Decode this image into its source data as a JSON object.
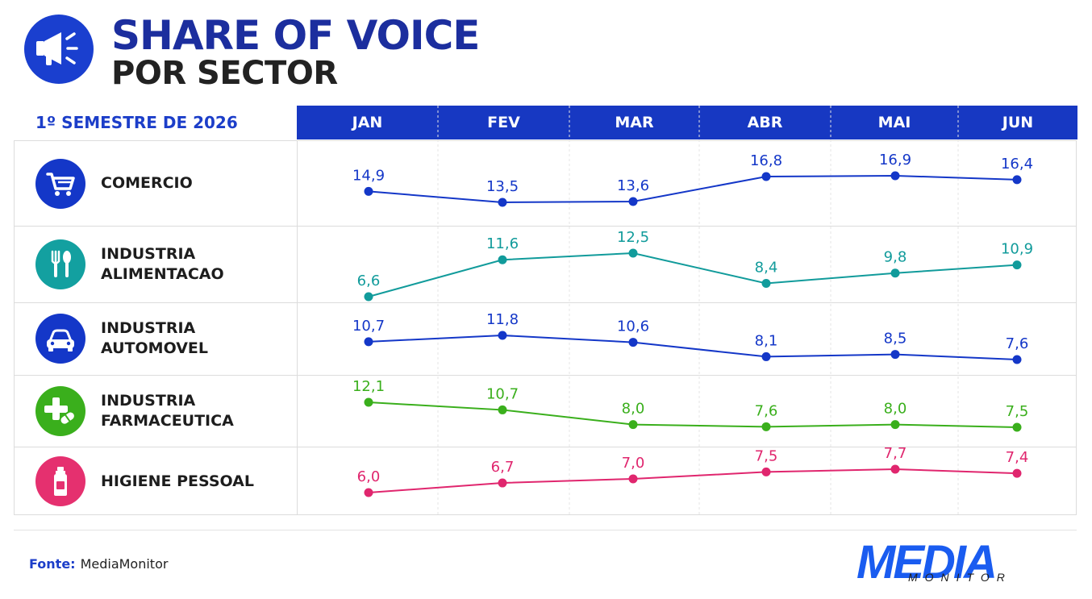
{
  "header": {
    "title": "SHARE OF VOICE",
    "subtitle": "POR SECTOR",
    "icon": "megaphone-icon"
  },
  "period_label": "1º SEMESTRE DE 2026",
  "chart_data": {
    "type": "line",
    "categories": [
      "JAN",
      "FEV",
      "MAR",
      "ABR",
      "MAI",
      "JUN"
    ],
    "series": [
      {
        "name": "COMERCIO",
        "icon": "cart-icon",
        "color": "#1437c8",
        "icon_bg": "#1437c8",
        "values": [
          14.9,
          13.5,
          13.6,
          16.8,
          16.9,
          16.4
        ],
        "labels": [
          "14,9",
          "13,5",
          "13,6",
          "16,8",
          "16,9",
          "16,4"
        ]
      },
      {
        "name": "INDUSTRIA\nALIMENTACAO",
        "icon": "fork-knife-icon",
        "color": "#119b9b",
        "icon_bg": "#13a0a0",
        "values": [
          6.6,
          11.6,
          12.5,
          8.4,
          9.8,
          10.9
        ],
        "labels": [
          "6,6",
          "11,6",
          "12,5",
          "8,4",
          "9,8",
          "10,9"
        ]
      },
      {
        "name": "INDUSTRIA\nAUTOMOVEL",
        "icon": "car-icon",
        "color": "#1437c8",
        "icon_bg": "#1437c8",
        "values": [
          10.7,
          11.8,
          10.6,
          8.1,
          8.5,
          7.6
        ],
        "labels": [
          "10,7",
          "11,8",
          "10,6",
          "8,1",
          "8,5",
          "7,6"
        ]
      },
      {
        "name": "INDUSTRIA\nFARMACEUTICA",
        "icon": "medicine-icon",
        "color": "#3aaf1c",
        "icon_bg": "#3aaf1c",
        "values": [
          12.1,
          10.7,
          8.0,
          7.6,
          8.0,
          7.5
        ],
        "labels": [
          "12,1",
          "10,7",
          "8,0",
          "7,6",
          "8,0",
          "7,5"
        ]
      },
      {
        "name": "HIGIENE PESSOAL",
        "icon": "bottle-icon",
        "color": "#e0266e",
        "icon_bg": "#e5306f",
        "values": [
          6.0,
          6.7,
          7.0,
          7.5,
          7.7,
          7.4
        ],
        "labels": [
          "6,0",
          "6,7",
          "7,0",
          "7,5",
          "7,7",
          "7,4"
        ]
      }
    ]
  },
  "footer": {
    "source_label": "Fonte:",
    "source_value": "MediaMonitor",
    "logo_main": "MEDIA",
    "logo_sub": "MONITOR"
  }
}
